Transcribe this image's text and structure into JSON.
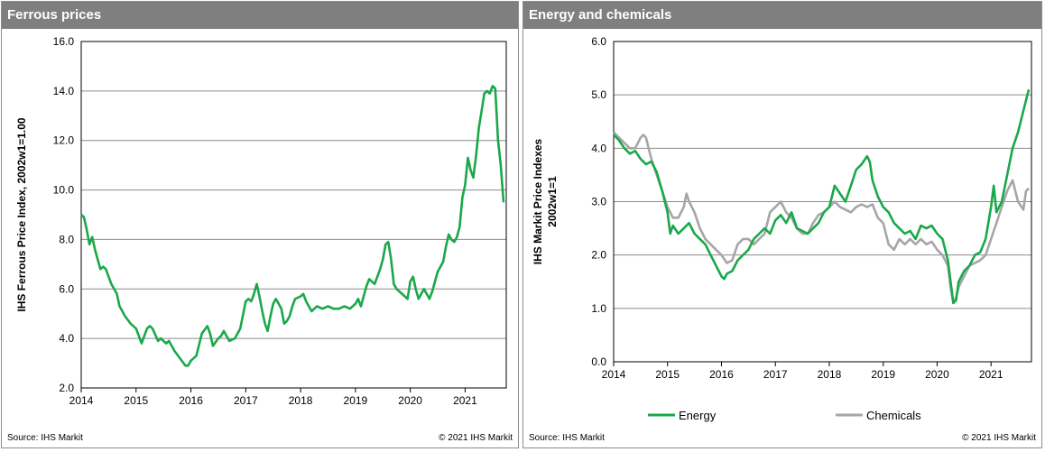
{
  "charts": {
    "ferrous": {
      "title": "Ferrous prices",
      "source": "Source:  IHS Markit",
      "copyright": "© 2021  IHS Markit",
      "color": "#1aa84a",
      "chart_data": {
        "type": "line",
        "ylabel": "IHS Ferrous Price Index, 2002w1=1.00",
        "ylim": [
          2.0,
          16.0
        ],
        "yticks": [
          "2.0",
          "4.0",
          "6.0",
          "8.0",
          "10.0",
          "12.0",
          "14.0",
          "16.0"
        ],
        "xlim": [
          2014.0,
          2021.75
        ],
        "xticks": [
          "2014",
          "2015",
          "2016",
          "2017",
          "2018",
          "2019",
          "2020",
          "2021"
        ],
        "grid": "horizontal",
        "series": [
          {
            "x": [
              2014.0,
              2014.05,
              2014.1,
              2014.15,
              2014.2,
              2014.25,
              2014.3,
              2014.35,
              2014.4,
              2014.45,
              2014.55,
              2014.65,
              2014.7,
              2014.8,
              2014.9,
              2015.0,
              2015.1,
              2015.2,
              2015.25,
              2015.3,
              2015.4,
              2015.45,
              2015.55,
              2015.6,
              2015.65,
              2015.7,
              2015.8,
              2015.9,
              2015.95,
              2016.0,
              2016.1,
              2016.2,
              2016.3,
              2016.35,
              2016.4,
              2016.5,
              2016.55,
              2016.6,
              2016.7,
              2016.8,
              2016.9,
              2017.0,
              2017.05,
              2017.1,
              2017.15,
              2017.2,
              2017.25,
              2017.3,
              2017.35,
              2017.4,
              2017.45,
              2017.5,
              2017.55,
              2017.6,
              2017.65,
              2017.7,
              2017.75,
              2017.8,
              2017.85,
              2017.9,
              2018.0,
              2018.05,
              2018.1,
              2018.15,
              2018.2,
              2018.25,
              2018.3,
              2018.4,
              2018.5,
              2018.6,
              2018.7,
              2018.8,
              2018.9,
              2019.0,
              2019.05,
              2019.1,
              2019.2,
              2019.25,
              2019.3,
              2019.35,
              2019.4,
              2019.45,
              2019.5,
              2019.55,
              2019.6,
              2019.65,
              2019.7,
              2019.75,
              2019.8,
              2019.9,
              2019.95,
              2020.0,
              2020.05,
              2020.1,
              2020.15,
              2020.2,
              2020.25,
              2020.3,
              2020.35,
              2020.4,
              2020.45,
              2020.5,
              2020.55,
              2020.6,
              2020.65,
              2020.7,
              2020.75,
              2020.8,
              2020.85,
              2020.9,
              2020.95,
              2021.0,
              2021.05,
              2021.1,
              2021.15,
              2021.2,
              2021.25,
              2021.3,
              2021.35,
              2021.4,
              2021.45,
              2021.5,
              2021.55,
              2021.6,
              2021.65,
              2021.7
            ],
            "values": [
              9.0,
              8.9,
              8.4,
              7.8,
              8.1,
              7.6,
              7.2,
              6.8,
              6.9,
              6.8,
              6.2,
              5.8,
              5.3,
              4.9,
              4.6,
              4.4,
              3.8,
              4.4,
              4.5,
              4.4,
              3.9,
              4.0,
              3.8,
              3.9,
              3.7,
              3.5,
              3.2,
              2.9,
              2.9,
              3.1,
              3.3,
              4.2,
              4.5,
              4.2,
              3.7,
              4.0,
              4.1,
              4.3,
              3.9,
              4.0,
              4.4,
              5.5,
              5.6,
              5.5,
              5.8,
              6.2,
              5.7,
              5.1,
              4.6,
              4.3,
              4.9,
              5.4,
              5.6,
              5.4,
              5.2,
              4.6,
              4.7,
              4.9,
              5.3,
              5.6,
              5.7,
              5.8,
              5.5,
              5.3,
              5.1,
              5.2,
              5.3,
              5.2,
              5.3,
              5.2,
              5.2,
              5.3,
              5.2,
              5.4,
              5.6,
              5.3,
              6.1,
              6.4,
              6.3,
              6.2,
              6.5,
              6.8,
              7.2,
              7.8,
              7.9,
              7.2,
              6.2,
              6.0,
              5.9,
              5.7,
              5.6,
              6.3,
              6.5,
              6.0,
              5.6,
              5.8,
              6.0,
              5.8,
              5.6,
              5.9,
              6.3,
              6.7,
              6.9,
              7.1,
              7.7,
              8.2,
              8.0,
              7.9,
              8.1,
              8.5,
              9.7,
              10.2,
              11.3,
              10.8,
              10.5,
              11.4,
              12.5,
              13.2,
              13.9,
              14.0,
              13.9,
              14.2,
              14.1,
              12.0,
              11.0,
              9.5
            ]
          }
        ]
      }
    },
    "energy": {
      "title": "Energy and chemicals",
      "source": "Source:  IHS Markit",
      "copyright": "© 2021  IHS Markit",
      "chart_data": {
        "type": "line",
        "ylabel": "IHS Markit Price Indexes\n2002w1=1",
        "ylim": [
          0.0,
          6.0
        ],
        "yticks": [
          "0.0",
          "1.0",
          "2.0",
          "3.0",
          "4.0",
          "5.0",
          "6.0"
        ],
        "xlim": [
          2014.0,
          2021.75
        ],
        "xticks": [
          "2014",
          "2015",
          "2016",
          "2017",
          "2018",
          "2019",
          "2020",
          "2021"
        ],
        "grid": "horizontal",
        "legend": "bottom",
        "series": [
          {
            "name": "Energy",
            "color": "#1aa84a",
            "x": [
              2014.0,
              2014.1,
              2014.2,
              2014.3,
              2014.4,
              2014.5,
              2014.6,
              2014.7,
              2014.8,
              2014.9,
              2015.0,
              2015.05,
              2015.1,
              2015.2,
              2015.3,
              2015.4,
              2015.5,
              2015.6,
              2015.7,
              2015.8,
              2015.9,
              2016.0,
              2016.05,
              2016.1,
              2016.2,
              2016.3,
              2016.4,
              2016.5,
              2016.6,
              2016.7,
              2016.8,
              2016.9,
              2017.0,
              2017.1,
              2017.2,
              2017.3,
              2017.4,
              2017.5,
              2017.6,
              2017.7,
              2017.8,
              2017.9,
              2018.0,
              2018.1,
              2018.2,
              2018.3,
              2018.4,
              2018.5,
              2018.6,
              2018.7,
              2018.75,
              2018.8,
              2018.9,
              2019.0,
              2019.1,
              2019.2,
              2019.3,
              2019.4,
              2019.5,
              2019.6,
              2019.7,
              2019.8,
              2019.9,
              2020.0,
              2020.1,
              2020.2,
              2020.25,
              2020.3,
              2020.35,
              2020.4,
              2020.5,
              2020.6,
              2020.7,
              2020.8,
              2020.9,
              2021.0,
              2021.05,
              2021.1,
              2021.2,
              2021.3,
              2021.4,
              2021.5,
              2021.6,
              2021.7
            ],
            "values": [
              4.25,
              4.15,
              4.0,
              3.9,
              3.95,
              3.8,
              3.7,
              3.75,
              3.55,
              3.2,
              2.8,
              2.4,
              2.55,
              2.4,
              2.5,
              2.6,
              2.4,
              2.3,
              2.2,
              2.0,
              1.8,
              1.6,
              1.55,
              1.65,
              1.7,
              1.9,
              2.0,
              2.1,
              2.3,
              2.4,
              2.5,
              2.4,
              2.65,
              2.75,
              2.6,
              2.8,
              2.5,
              2.45,
              2.4,
              2.5,
              2.6,
              2.8,
              2.9,
              3.3,
              3.15,
              3.0,
              3.3,
              3.6,
              3.7,
              3.85,
              3.75,
              3.4,
              3.1,
              2.9,
              2.8,
              2.6,
              2.5,
              2.4,
              2.45,
              2.3,
              2.55,
              2.5,
              2.55,
              2.4,
              2.3,
              1.9,
              1.5,
              1.1,
              1.15,
              1.5,
              1.7,
              1.8,
              2.0,
              2.05,
              2.3,
              2.9,
              3.3,
              2.8,
              3.0,
              3.5,
              4.0,
              4.3,
              4.7,
              5.1
            ]
          },
          {
            "name": "Chemicals",
            "color": "#a6a6a6",
            "x": [
              2014.0,
              2014.1,
              2014.2,
              2014.3,
              2014.4,
              2014.5,
              2014.55,
              2014.6,
              2014.7,
              2014.8,
              2014.9,
              2015.0,
              2015.1,
              2015.2,
              2015.3,
              2015.35,
              2015.4,
              2015.5,
              2015.6,
              2015.7,
              2015.8,
              2015.9,
              2016.0,
              2016.1,
              2016.2,
              2016.3,
              2016.4,
              2016.5,
              2016.6,
              2016.7,
              2016.8,
              2016.9,
              2017.0,
              2017.1,
              2017.2,
              2017.3,
              2017.4,
              2017.5,
              2017.6,
              2017.7,
              2017.8,
              2017.9,
              2018.0,
              2018.1,
              2018.2,
              2018.3,
              2018.4,
              2018.5,
              2018.6,
              2018.7,
              2018.8,
              2018.9,
              2019.0,
              2019.1,
              2019.2,
              2019.3,
              2019.4,
              2019.5,
              2019.6,
              2019.7,
              2019.8,
              2019.9,
              2020.0,
              2020.1,
              2020.2,
              2020.25,
              2020.3,
              2020.35,
              2020.4,
              2020.5,
              2020.6,
              2020.7,
              2020.8,
              2020.9,
              2021.0,
              2021.1,
              2021.2,
              2021.3,
              2021.4,
              2021.5,
              2021.6,
              2021.65,
              2021.7
            ],
            "values": [
              4.3,
              4.2,
              4.1,
              4.0,
              4.0,
              4.2,
              4.25,
              4.2,
              3.8,
              3.5,
              3.2,
              2.9,
              2.7,
              2.7,
              2.9,
              3.15,
              3.0,
              2.8,
              2.5,
              2.3,
              2.2,
              2.1,
              2.0,
              1.85,
              1.9,
              2.2,
              2.3,
              2.3,
              2.2,
              2.3,
              2.4,
              2.8,
              2.9,
              3.0,
              2.8,
              2.7,
              2.5,
              2.4,
              2.4,
              2.6,
              2.75,
              2.8,
              2.9,
              3.0,
              2.9,
              2.85,
              2.8,
              2.9,
              2.95,
              2.9,
              2.95,
              2.7,
              2.6,
              2.2,
              2.1,
              2.3,
              2.2,
              2.3,
              2.2,
              2.3,
              2.2,
              2.25,
              2.1,
              2.0,
              1.8,
              1.4,
              1.1,
              1.2,
              1.4,
              1.6,
              1.8,
              1.85,
              1.9,
              2.0,
              2.3,
              2.6,
              2.9,
              3.2,
              3.4,
              3.0,
              2.85,
              3.2,
              3.25
            ]
          }
        ]
      }
    }
  }
}
